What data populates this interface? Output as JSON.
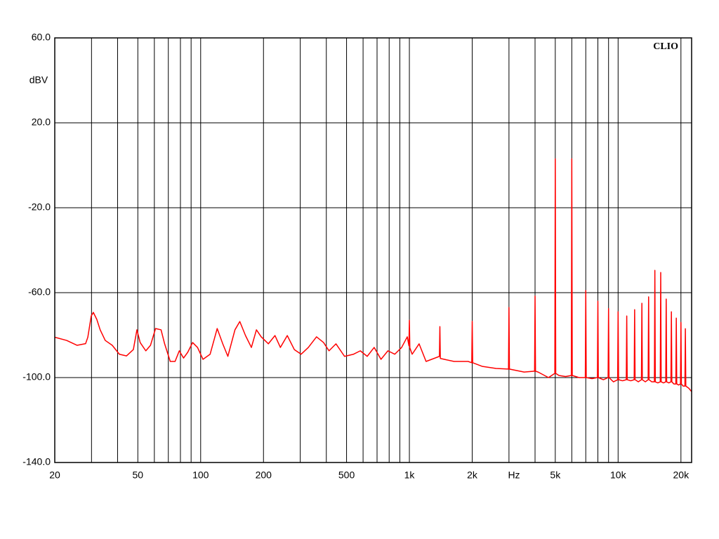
{
  "chart_data": {
    "type": "line",
    "watermark": "CLIO",
    "y_label": "dBV",
    "x_label": "Hz",
    "xscale": "log",
    "grid": true,
    "xlim": [
      20,
      22500
    ],
    "ylim": [
      -140,
      60
    ],
    "yticks": [
      {
        "value": -140,
        "label": "-140.0"
      },
      {
        "value": -100,
        "label": "-100.0"
      },
      {
        "value": -60,
        "label": "-60.0"
      },
      {
        "value": -20,
        "label": "-20.0"
      },
      {
        "value": 20,
        "label": "20.0"
      },
      {
        "value": 60,
        "label": "60.0"
      }
    ],
    "xticks": [
      20,
      50,
      100,
      200,
      500,
      {
        "value": 1000,
        "label": "1k"
      },
      {
        "value": 2000,
        "label": "2k"
      },
      {
        "value": 5000,
        "label": "5k"
      },
      {
        "value": 10000,
        "label": "10k"
      },
      {
        "value": 20000,
        "label": "20k"
      }
    ],
    "xminor": [
      30,
      40,
      60,
      70,
      80,
      90,
      300,
      400,
      600,
      700,
      800,
      900,
      3000,
      4000,
      6000,
      7000,
      8000,
      9000
    ],
    "x": [
      20,
      22.8,
      25.6,
      28.1,
      28.8,
      29.9,
      30.6,
      31.8,
      33,
      34.9,
      37.7,
      40.8,
      44.1,
      47.6,
      49.5,
      51.3,
      54.6,
      57.5,
      60.8,
      64.6,
      67.2,
      71.5,
      75.4,
      79,
      82.8,
      86.7,
      91.5,
      96.6,
      102.6,
      111,
      120,
      127.6,
      135,
      146,
      154,
      164,
      175,
      185,
      195,
      211,
      227,
      241,
      260,
      281,
      303,
      328,
      359,
      388,
      412,
      445,
      489,
      540,
      582,
      628,
      678,
      731,
      789,
      851,
      918,
      977,
      995,
      1000,
      1005,
      1031,
      1113,
      1202,
      1393,
      1400,
      1407,
      1637,
      1911,
      1990,
      2000,
      2010,
      2230,
      2603,
      2985,
      3000,
      3015,
      3545,
      3980,
      4000,
      4020,
      4137,
      4640,
      4975,
      5000,
      5025,
      5208,
      5600,
      5970,
      6000,
      6030,
      6500,
      6965,
      7000,
      7035,
      7500,
      7960,
      8000,
      8040,
      8500,
      8955,
      9000,
      9045,
      9500,
      9950,
      10000,
      10050,
      10500,
      10945,
      11000,
      11055,
      11500,
      11940,
      12000,
      12060,
      12500,
      12935,
      13000,
      13065,
      13500,
      13930,
      14000,
      14070,
      14500,
      14925,
      15000,
      15075,
      15500,
      15920,
      16000,
      16080,
      16500,
      16915,
      17000,
      17085,
      17500,
      17910,
      18000,
      18090,
      18500,
      18905,
      19000,
      19095,
      19500,
      19900,
      20000,
      20100,
      20500,
      20895,
      21000,
      21105,
      21800,
      22500
    ],
    "series": [
      {
        "color": "#ff0000",
        "values": [
          -81,
          -82.5,
          -84.8,
          -84,
          -81,
          -71,
          -69.3,
          -72.6,
          -77.5,
          -82.5,
          -84.8,
          -89,
          -89.8,
          -86.8,
          -77.5,
          -83.5,
          -87.4,
          -84.8,
          -76.9,
          -77.5,
          -84.1,
          -92.4,
          -92.4,
          -87.4,
          -90.8,
          -88.1,
          -83.5,
          -85.8,
          -91.4,
          -89,
          -76.9,
          -84.1,
          -90,
          -77.5,
          -73.6,
          -80.2,
          -85.8,
          -77.5,
          -80.8,
          -84.1,
          -80.2,
          -85.8,
          -80.2,
          -86.8,
          -89,
          -85.8,
          -80.8,
          -83.5,
          -87.4,
          -84.1,
          -90,
          -89,
          -87.4,
          -90,
          -85.8,
          -91.4,
          -87.4,
          -89,
          -85.8,
          -80.8,
          -85,
          -73,
          -86,
          -89,
          -84.1,
          -92.4,
          -90,
          -76,
          -91,
          -92.4,
          -92.4,
          -93,
          -73.5,
          -93,
          -94.7,
          -95.7,
          -96,
          -67,
          -96,
          -97.4,
          -97,
          -61.6,
          -97,
          -97.4,
          -100,
          -98,
          3,
          -98,
          -99,
          -99.5,
          -99,
          3,
          -99,
          -100,
          -100,
          -59,
          -100,
          -100.5,
          -100,
          -64,
          -100,
          -101,
          -100,
          -67.5,
          -100,
          -102,
          -101,
          -69,
          -101,
          -101.5,
          -101,
          -71,
          -101,
          -101.5,
          -101,
          -68,
          -101,
          -102,
          -101,
          -65,
          -101,
          -102,
          -101,
          -62,
          -101,
          -102,
          -102,
          -49.5,
          -102,
          -102.5,
          -102,
          -50.5,
          -102,
          -102.5,
          -102,
          -63,
          -102,
          -102.5,
          -102,
          -69,
          -102,
          -103,
          -103,
          -72,
          -103,
          -103.5,
          -103,
          -74,
          -103,
          -104,
          -104,
          -77,
          -104,
          -105,
          -106.6
        ]
      }
    ]
  }
}
